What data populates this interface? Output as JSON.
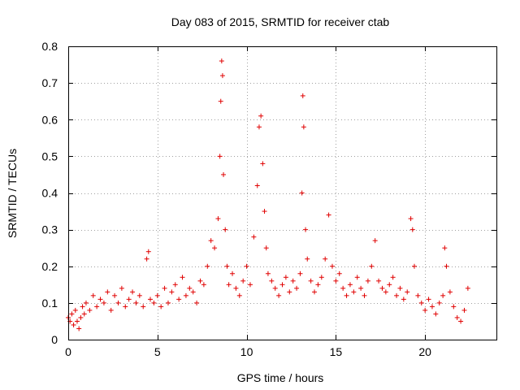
{
  "chart_data": {
    "type": "scatter",
    "title": "Day 083 of 2015, SRMTID for receiver ctab",
    "xlabel": "GPS time / hours",
    "ylabel": "SRMTID / TECUs",
    "xlim": [
      0,
      24
    ],
    "ylim": [
      0,
      0.8
    ],
    "xticks": [
      0,
      5,
      10,
      15,
      20
    ],
    "xtick_labels": [
      "0",
      "5",
      "10",
      "15",
      "20"
    ],
    "yticks": [
      0,
      0.1,
      0.2,
      0.3,
      0.4,
      0.5,
      0.6,
      0.7,
      0.8
    ],
    "ytick_labels": [
      "0",
      "0.1",
      "0.2",
      "0.3",
      "0.4",
      "0.5",
      "0.6",
      "0.7",
      "0.8"
    ],
    "grid": true,
    "marker": "+",
    "series": [
      {
        "name": "ctab",
        "color": "#e00000",
        "x": [
          0.0,
          0.1,
          0.2,
          0.3,
          0.4,
          0.5,
          0.6,
          0.7,
          0.8,
          0.9,
          1.0,
          1.2,
          1.4,
          1.6,
          1.8,
          2.0,
          2.2,
          2.4,
          2.6,
          2.8,
          3.0,
          3.2,
          3.4,
          3.6,
          3.8,
          4.0,
          4.2,
          4.4,
          4.5,
          4.6,
          4.8,
          5.0,
          5.2,
          5.4,
          5.6,
          5.8,
          6.0,
          6.2,
          6.4,
          6.6,
          6.8,
          7.0,
          7.2,
          7.4,
          7.6,
          7.8,
          8.0,
          8.2,
          8.4,
          8.5,
          8.55,
          8.6,
          8.65,
          8.7,
          8.8,
          8.9,
          9.0,
          9.2,
          9.4,
          9.6,
          9.8,
          10.0,
          10.2,
          10.4,
          10.6,
          10.7,
          10.8,
          10.9,
          11.0,
          11.1,
          11.2,
          11.4,
          11.6,
          11.8,
          12.0,
          12.2,
          12.4,
          12.6,
          12.8,
          13.0,
          13.1,
          13.15,
          13.2,
          13.3,
          13.4,
          13.6,
          13.8,
          14.0,
          14.2,
          14.4,
          14.6,
          14.8,
          15.0,
          15.2,
          15.4,
          15.6,
          15.8,
          16.0,
          16.2,
          16.4,
          16.6,
          16.8,
          17.0,
          17.2,
          17.4,
          17.6,
          17.8,
          18.0,
          18.2,
          18.4,
          18.6,
          18.8,
          19.0,
          19.2,
          19.3,
          19.4,
          19.6,
          19.8,
          20.0,
          20.2,
          20.4,
          20.6,
          20.8,
          21.0,
          21.1,
          21.2,
          21.4,
          21.6,
          21.8,
          22.0,
          22.2,
          22.4
        ],
        "y": [
          0.06,
          0.05,
          0.07,
          0.04,
          0.08,
          0.05,
          0.03,
          0.06,
          0.09,
          0.07,
          0.1,
          0.08,
          0.12,
          0.09,
          0.11,
          0.1,
          0.13,
          0.08,
          0.12,
          0.1,
          0.14,
          0.09,
          0.11,
          0.13,
          0.1,
          0.12,
          0.09,
          0.22,
          0.24,
          0.11,
          0.1,
          0.12,
          0.09,
          0.14,
          0.1,
          0.13,
          0.15,
          0.11,
          0.17,
          0.12,
          0.14,
          0.13,
          0.1,
          0.16,
          0.15,
          0.2,
          0.27,
          0.25,
          0.33,
          0.5,
          0.65,
          0.76,
          0.72,
          0.45,
          0.3,
          0.2,
          0.15,
          0.18,
          0.14,
          0.12,
          0.16,
          0.2,
          0.15,
          0.28,
          0.42,
          0.58,
          0.61,
          0.48,
          0.35,
          0.25,
          0.18,
          0.16,
          0.14,
          0.12,
          0.15,
          0.17,
          0.13,
          0.16,
          0.14,
          0.18,
          0.4,
          0.665,
          0.58,
          0.3,
          0.22,
          0.16,
          0.13,
          0.15,
          0.17,
          0.22,
          0.34,
          0.2,
          0.16,
          0.18,
          0.14,
          0.12,
          0.15,
          0.13,
          0.17,
          0.14,
          0.12,
          0.16,
          0.2,
          0.27,
          0.16,
          0.14,
          0.13,
          0.15,
          0.17,
          0.12,
          0.14,
          0.11,
          0.13,
          0.33,
          0.3,
          0.2,
          0.12,
          0.1,
          0.08,
          0.11,
          0.09,
          0.07,
          0.1,
          0.12,
          0.25,
          0.2,
          0.13,
          0.09,
          0.06,
          0.05,
          0.08,
          0.14
        ]
      }
    ]
  }
}
